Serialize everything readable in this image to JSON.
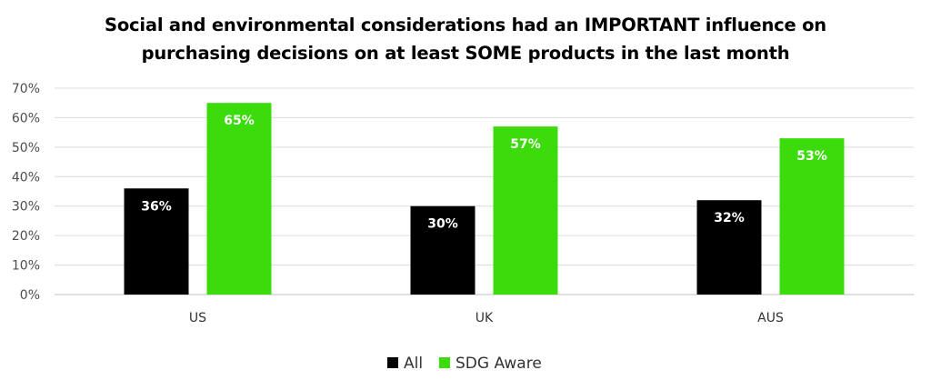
{
  "chart_data": {
    "type": "bar",
    "title_lines": [
      "Social and environmental considerations had an IMPORTANT influence on",
      "purchasing decisions on at least SOME products in the last month"
    ],
    "categories": [
      "US",
      "UK",
      "AUS"
    ],
    "series": [
      {
        "name": "All",
        "color": "#000000",
        "values": [
          36,
          30,
          32
        ],
        "labels": [
          "36%",
          "30%",
          "32%"
        ]
      },
      {
        "name": "SDG Aware",
        "color": "#3cdb0c",
        "values": [
          65,
          57,
          53
        ],
        "labels": [
          "65%",
          "57%",
          "53%"
        ]
      }
    ],
    "y_ticks": [
      "0%",
      "10%",
      "20%",
      "30%",
      "40%",
      "50%",
      "60%",
      "70%"
    ],
    "ylim": [
      0,
      70
    ],
    "grid": true,
    "legend_position": "bottom"
  }
}
